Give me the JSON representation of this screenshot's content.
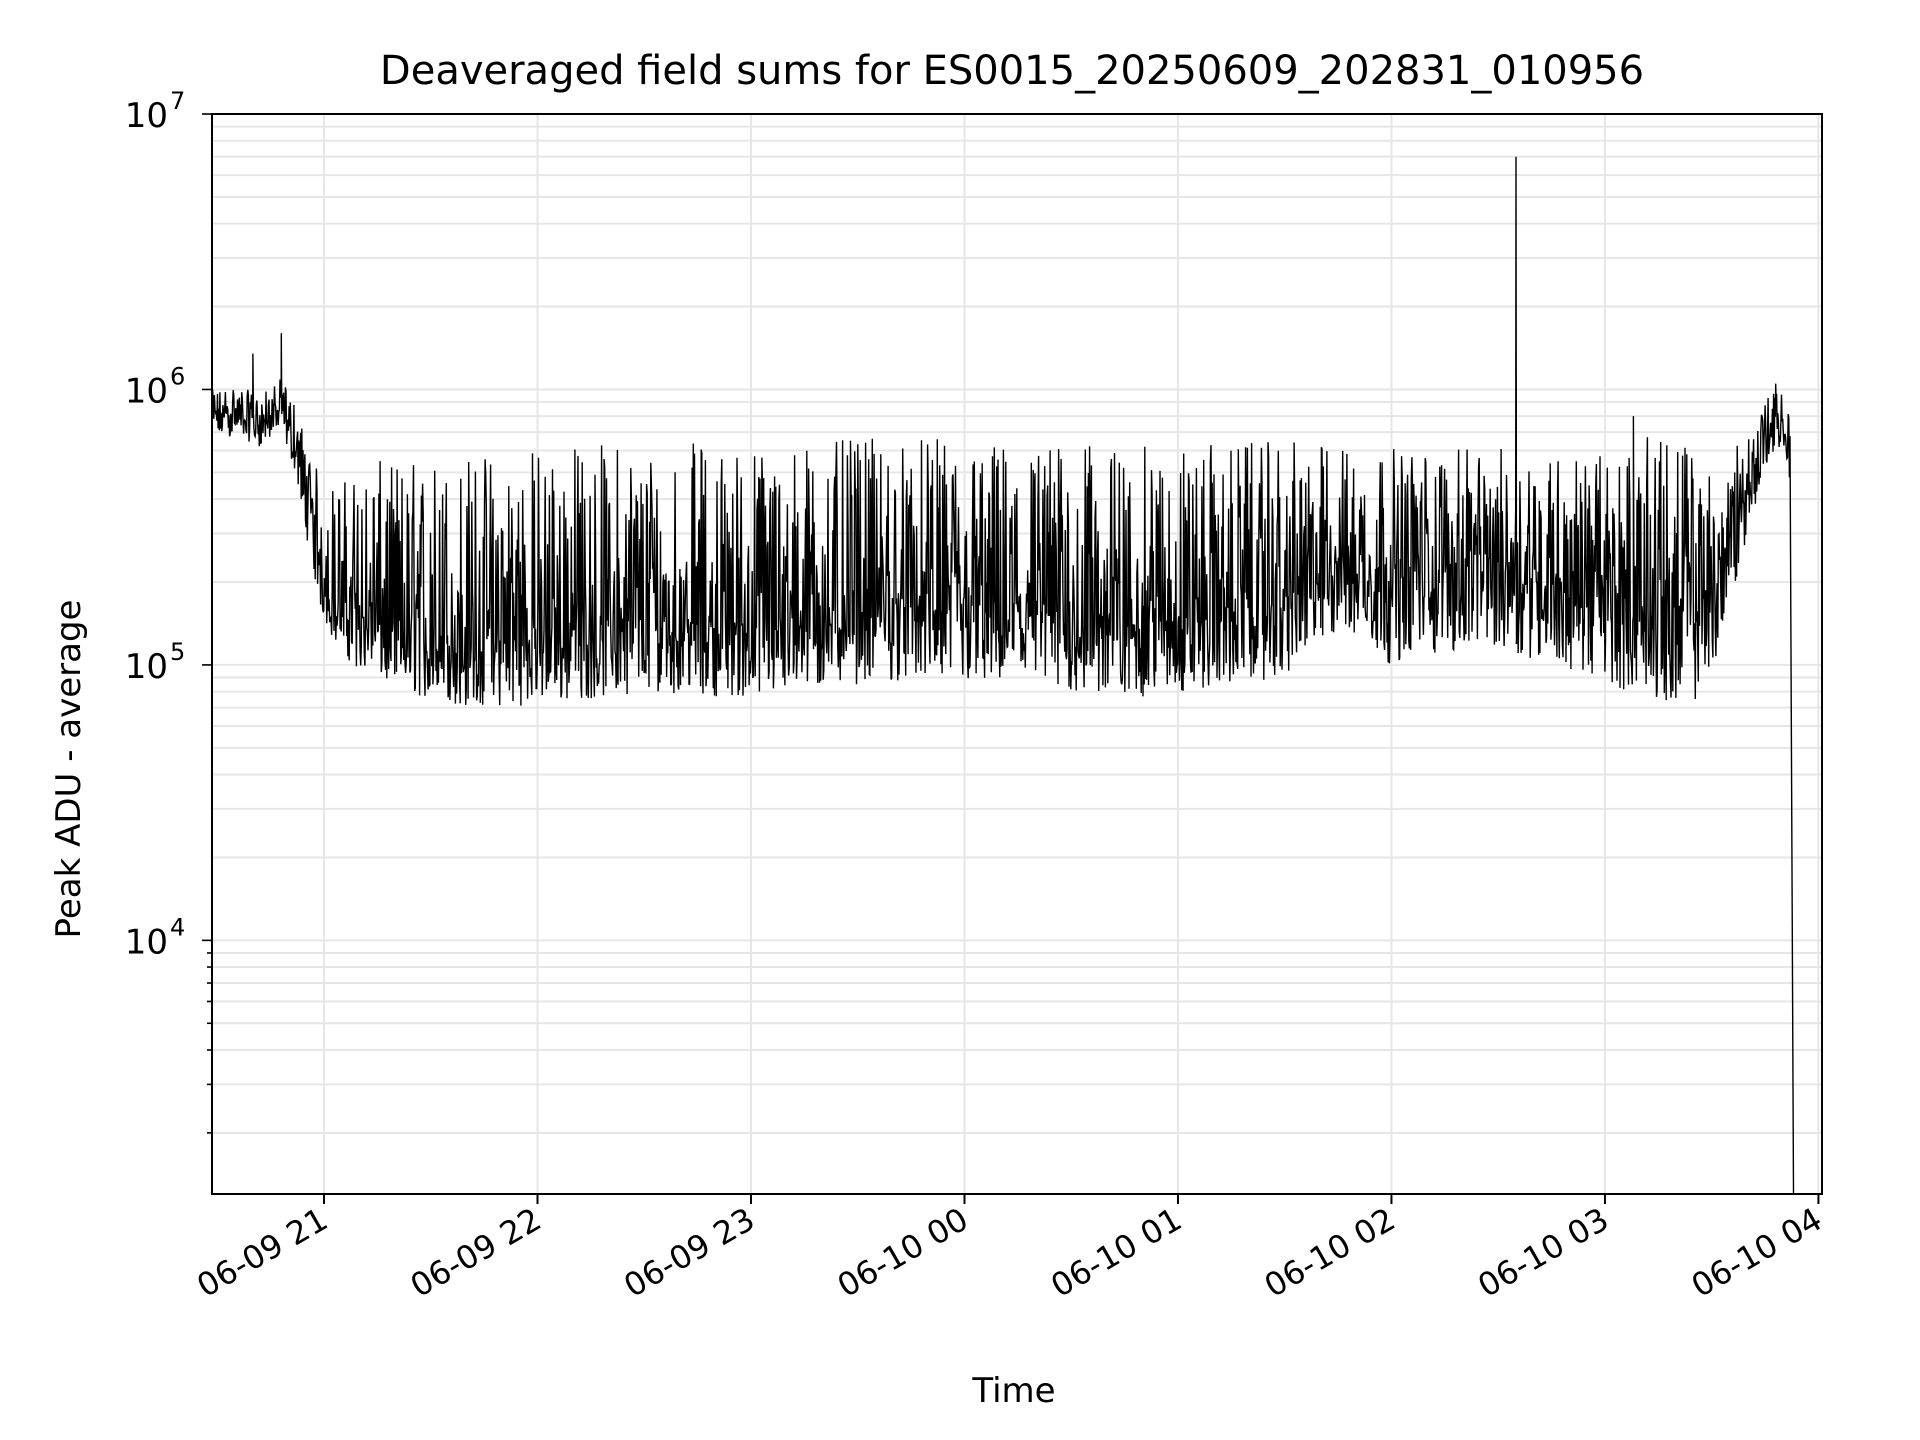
{
  "chart_data": {
    "type": "line",
    "title": "Deaveraged field sums for ES0015_20250609_202831_010956",
    "xlabel": "Time",
    "ylabel": "Peak ADU - average",
    "yscale": "log",
    "ylim": [
      1200,
      10000000
    ],
    "xlim": [
      "2025-06-09 20:28:31",
      "2025-06-10 04:01:00"
    ],
    "grid": true,
    "line_color": "#000000",
    "grid_color": "#e6e6e6",
    "x_ticks": [
      {
        "t": "2025-06-09 21:00:00",
        "label": "06-09 21"
      },
      {
        "t": "2025-06-09 22:00:00",
        "label": "06-09 22"
      },
      {
        "t": "2025-06-09 23:00:00",
        "label": "06-09 23"
      },
      {
        "t": "2025-06-10 00:00:00",
        "label": "06-10 00"
      },
      {
        "t": "2025-06-10 01:00:00",
        "label": "06-10 01"
      },
      {
        "t": "2025-06-10 02:00:00",
        "label": "06-10 02"
      },
      {
        "t": "2025-06-10 03:00:00",
        "label": "06-10 03"
      },
      {
        "t": "2025-06-10 04:00:00",
        "label": "06-10 04"
      }
    ],
    "y_ticks": [
      {
        "value": 10000,
        "base": "10",
        "exp": "4"
      },
      {
        "value": 100000,
        "base": "10",
        "exp": "5"
      },
      {
        "value": 1000000,
        "base": "10",
        "exp": "6"
      },
      {
        "value": 10000000,
        "base": "10",
        "exp": "7"
      }
    ],
    "series": [
      {
        "x": [
          "2025-06-09 20:28:31",
          "2025-06-09 20:35:00",
          "2025-06-09 20:42:00",
          "2025-06-09 20:48:00",
          "2025-06-09 20:52:00",
          "2025-06-09 20:56:00",
          "2025-06-09 21:00:00",
          "2025-06-09 21:05:00",
          "2025-06-09 21:10:00",
          "2025-06-09 21:15:00",
          "2025-06-09 21:20:00",
          "2025-06-09 21:30:00",
          "2025-06-09 21:40:00",
          "2025-06-09 21:50:00",
          "2025-06-09 22:00:00",
          "2025-06-09 22:15:00",
          "2025-06-09 22:30:00",
          "2025-06-09 22:45:00",
          "2025-06-09 23:00:00",
          "2025-06-09 23:15:00",
          "2025-06-09 23:30:00",
          "2025-06-09 23:45:00",
          "2025-06-10 00:00:00",
          "2025-06-10 00:15:00",
          "2025-06-10 00:30:00",
          "2025-06-10 00:45:00",
          "2025-06-10 01:00:00",
          "2025-06-10 01:15:00",
          "2025-06-10 01:30:00",
          "2025-06-10 01:45:00",
          "2025-06-10 02:00:00",
          "2025-06-10 02:15:00",
          "2025-06-10 02:30:00",
          "2025-06-10 02:45:00",
          "2025-06-10 03:00:00",
          "2025-06-10 03:15:00",
          "2025-06-10 03:25:00",
          "2025-06-10 03:32:00",
          "2025-06-10 03:40:00",
          "2025-06-10 03:46:00",
          "2025-06-10 03:50:00",
          "2025-06-10 03:52:00",
          "2025-06-10 03:53:00"
        ],
        "y": [
          800000,
          820000,
          760000,
          860000,
          620000,
          360000,
          200000,
          160000,
          150000,
          140000,
          130000,
          120000,
          115000,
          125000,
          130000,
          135000,
          145000,
          140000,
          140000,
          150000,
          160000,
          165000,
          155000,
          160000,
          150000,
          145000,
          150000,
          160000,
          170000,
          250000,
          200000,
          230000,
          240000,
          210000,
          180000,
          155000,
          150000,
          210000,
          450000,
          700000,
          780000,
          520000,
          1200
        ],
        "envelope_low": [
          650000,
          680000,
          620000,
          700000,
          500000,
          250000,
          140000,
          110000,
          95000,
          90000,
          80000,
          75000,
          70000,
          70000,
          72000,
          75000,
          80000,
          78000,
          75000,
          80000,
          85000,
          88000,
          85000,
          82000,
          78000,
          75000,
          78000,
          85000,
          90000,
          130000,
          100000,
          110000,
          115000,
          100000,
          85000,
          75000,
          72000,
          110000,
          300000,
          550000,
          620000,
          450000,
          1200
        ],
        "envelope_high": [
          1000000,
          1050000,
          950000,
          1100000,
          900000,
          600000,
          450000,
          480000,
          520000,
          550000,
          560000,
          580000,
          600000,
          620000,
          640000,
          650000,
          660000,
          650000,
          640000,
          650000,
          660000,
          670000,
          660000,
          650000,
          640000,
          620000,
          630000,
          640000,
          650000,
          640000,
          620000,
          600000,
          620000,
          600000,
          580000,
          700000,
          650000,
          450000,
          750000,
          950000,
          1000000,
          800000,
          1200
        ],
        "spikes": [
          {
            "t": "2025-06-09 20:48:00",
            "value": 1600000
          },
          {
            "t": "2025-06-09 20:40:00",
            "value": 1350000
          },
          {
            "t": "2025-06-10 02:35:00",
            "value": 7000000
          },
          {
            "t": "2025-06-10 03:08:00",
            "value": 800000
          },
          {
            "t": "2025-06-10 03:48:00",
            "value": 1050000
          }
        ]
      }
    ]
  }
}
